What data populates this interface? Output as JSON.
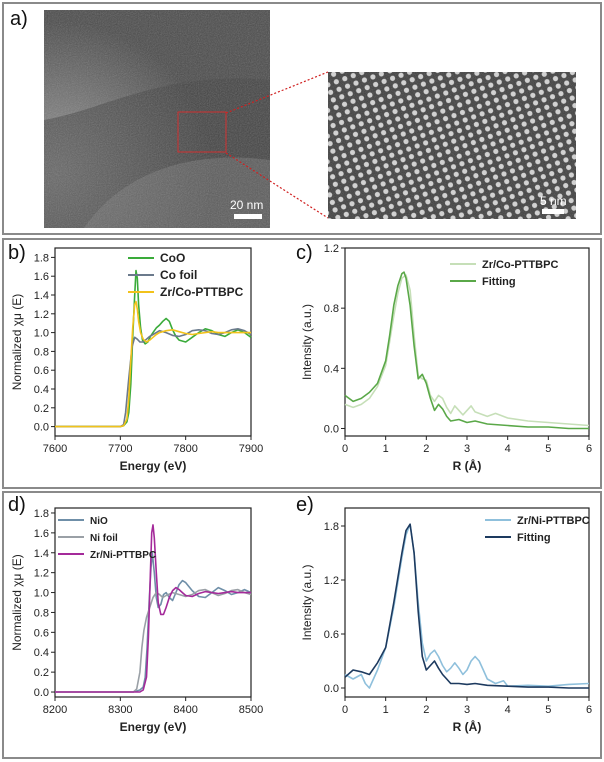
{
  "figure": {
    "panel_a": {
      "label": "a)",
      "left_image": {
        "scale_bar": "20 nm"
      },
      "right_image": {
        "scale_bar": "5 nm"
      }
    },
    "panel_b": {
      "label": "b)"
    },
    "panel_c": {
      "label": "c)"
    },
    "panel_d": {
      "label": "d)"
    },
    "panel_e": {
      "label": "e)"
    }
  },
  "colors": {
    "CoO": "#3aab3a",
    "Co foil": "#6b7a8c",
    "Zr/Co-PTTBPC": "#f2c21b",
    "Zr/Co-PTTBPC (c)": "#c6dfb8",
    "Fitting (c)": "#5aa848",
    "NiO": "#6f8fa8",
    "Ni foil": "#9aa0a6",
    "Zr/Ni-PTTBPC": "#a42a9a",
    "Zr/Ni-PTTBPC (e)": "#8fc0dc",
    "Fitting (e)": "#1d3a5f"
  },
  "chart_data": [
    {
      "id": "b",
      "type": "line",
      "xlabel": "Energy (eV)",
      "ylabel": "Normalized χμ (E)",
      "xlim": [
        7600,
        7900
      ],
      "ylim": [
        -0.1,
        1.9
      ],
      "xticks": [
        7600,
        7700,
        7800,
        7900
      ],
      "yticks": [
        0.0,
        0.2,
        0.4,
        0.6,
        0.8,
        1.0,
        1.2,
        1.4,
        1.6,
        1.8
      ],
      "legend_position": "top-right",
      "series": [
        {
          "name": "CoO",
          "x": [
            7600,
            7700,
            7705,
            7710,
            7713,
            7716,
            7719,
            7722,
            7724,
            7726,
            7728,
            7731,
            7734,
            7738,
            7742,
            7746,
            7750,
            7755,
            7760,
            7765,
            7770,
            7775,
            7780,
            7785,
            7790,
            7800,
            7810,
            7820,
            7830,
            7840,
            7850,
            7860,
            7870,
            7880,
            7890,
            7900
          ],
          "y": [
            0.0,
            0.0,
            0.01,
            0.05,
            0.15,
            0.45,
            0.95,
            1.4,
            1.66,
            1.58,
            1.3,
            1.05,
            0.92,
            0.88,
            0.9,
            0.96,
            1.0,
            1.05,
            1.08,
            1.12,
            1.15,
            1.12,
            1.03,
            0.96,
            0.92,
            0.9,
            0.95,
            1.0,
            1.04,
            1.02,
            0.98,
            0.96,
            1.0,
            1.03,
            1.0,
            0.95
          ]
        },
        {
          "name": "Co foil",
          "x": [
            7600,
            7700,
            7705,
            7708,
            7710,
            7712,
            7715,
            7718,
            7722,
            7726,
            7730,
            7735,
            7740,
            7745,
            7750,
            7755,
            7760,
            7770,
            7780,
            7790,
            7800,
            7810,
            7820,
            7830,
            7840,
            7850,
            7860,
            7870,
            7880,
            7890,
            7900
          ],
          "y": [
            0.0,
            0.0,
            0.02,
            0.15,
            0.3,
            0.45,
            0.65,
            0.85,
            0.95,
            0.93,
            0.9,
            0.9,
            0.93,
            0.96,
            0.98,
            1.0,
            1.02,
            1.0,
            0.97,
            0.96,
            0.98,
            1.02,
            1.03,
            1.02,
            0.99,
            0.98,
            1.0,
            1.03,
            1.04,
            1.02,
            0.98
          ]
        },
        {
          "name": "Zr/Co-PTTBPC",
          "x": [
            7600,
            7700,
            7705,
            7710,
            7713,
            7716,
            7719,
            7722,
            7724,
            7726,
            7728,
            7731,
            7735,
            7740,
            7745,
            7750,
            7755,
            7760,
            7770,
            7780,
            7790,
            7800,
            7810,
            7820,
            7830,
            7840,
            7850,
            7860,
            7870,
            7880,
            7890,
            7900
          ],
          "y": [
            0.0,
            0.0,
            0.01,
            0.08,
            0.3,
            0.7,
            1.05,
            1.3,
            1.33,
            1.25,
            1.12,
            1.0,
            0.93,
            0.9,
            0.92,
            0.95,
            0.98,
            1.0,
            1.02,
            1.03,
            1.01,
            0.99,
            0.98,
            0.99,
            1.0,
            1.01,
            1.0,
            1.0,
            1.0,
            1.0,
            1.0,
            1.0
          ]
        }
      ]
    },
    {
      "id": "c",
      "type": "line",
      "xlabel": "R (Å)",
      "ylabel": "Intensity (a.u.)",
      "xlim": [
        0,
        6
      ],
      "ylim": [
        -0.05,
        1.2
      ],
      "xticks": [
        0,
        1,
        2,
        3,
        4,
        5,
        6
      ],
      "yticks": [
        0.0,
        0.4,
        0.8,
        1.2
      ],
      "legend_position": "top-right",
      "series": [
        {
          "name": "Zr/Co-PTTBPC",
          "x": [
            0,
            0.2,
            0.4,
            0.6,
            0.8,
            1.0,
            1.1,
            1.2,
            1.3,
            1.4,
            1.5,
            1.6,
            1.7,
            1.8,
            1.9,
            2.0,
            2.1,
            2.2,
            2.3,
            2.4,
            2.5,
            2.6,
            2.7,
            2.8,
            2.9,
            3.0,
            3.1,
            3.2,
            3.3,
            3.5,
            3.7,
            4.0,
            4.5,
            5.0,
            5.5,
            6.0
          ],
          "y": [
            0.16,
            0.14,
            0.16,
            0.2,
            0.28,
            0.42,
            0.58,
            0.75,
            0.9,
            1.0,
            1.02,
            0.92,
            0.62,
            0.35,
            0.33,
            0.32,
            0.22,
            0.18,
            0.22,
            0.2,
            0.14,
            0.1,
            0.15,
            0.12,
            0.09,
            0.12,
            0.15,
            0.11,
            0.1,
            0.08,
            0.1,
            0.07,
            0.05,
            0.04,
            0.03,
            0.02
          ]
        },
        {
          "name": "Fitting",
          "x": [
            0,
            0.2,
            0.4,
            0.6,
            0.8,
            1.0,
            1.1,
            1.2,
            1.3,
            1.4,
            1.45,
            1.5,
            1.6,
            1.7,
            1.8,
            1.9,
            2.0,
            2.1,
            2.2,
            2.3,
            2.4,
            2.5,
            2.6,
            2.8,
            3.0,
            3.2,
            3.5,
            4.0,
            4.5,
            5.0,
            5.5,
            6.0
          ],
          "y": [
            0.22,
            0.18,
            0.2,
            0.24,
            0.3,
            0.45,
            0.62,
            0.82,
            0.95,
            1.03,
            1.04,
            1.0,
            0.82,
            0.55,
            0.33,
            0.36,
            0.3,
            0.2,
            0.12,
            0.16,
            0.13,
            0.08,
            0.05,
            0.06,
            0.04,
            0.05,
            0.03,
            0.02,
            0.01,
            0.01,
            0.0,
            0.0
          ]
        }
      ]
    },
    {
      "id": "d",
      "type": "line",
      "xlabel": "Energy (eV)",
      "ylabel": "Normalized χμ (E)",
      "xlim": [
        8200,
        8500
      ],
      "ylim": [
        -0.05,
        1.85
      ],
      "xticks": [
        8200,
        8300,
        8400,
        8500
      ],
      "yticks": [
        0.0,
        0.2,
        0.4,
        0.6,
        0.8,
        1.0,
        1.2,
        1.4,
        1.6,
        1.8
      ],
      "legend_position": "top-left",
      "series": [
        {
          "name": "NiO",
          "x": [
            8200,
            8320,
            8330,
            8335,
            8338,
            8341,
            8344,
            8347,
            8349,
            8352,
            8355,
            8358,
            8362,
            8366,
            8370,
            8375,
            8380,
            8385,
            8390,
            8395,
            8400,
            8410,
            8420,
            8430,
            8440,
            8450,
            8460,
            8470,
            8480,
            8490,
            8500
          ],
          "y": [
            0.0,
            0.0,
            0.02,
            0.05,
            0.15,
            0.45,
            0.9,
            1.25,
            1.4,
            1.2,
            0.95,
            0.85,
            0.88,
            0.98,
            1.0,
            0.95,
            0.92,
            1.0,
            1.08,
            1.12,
            1.1,
            1.02,
            0.96,
            0.95,
            1.0,
            1.05,
            1.02,
            0.98,
            1.0,
            1.03,
            1.0
          ]
        },
        {
          "name": "Ni foil",
          "x": [
            8200,
            8320,
            8325,
            8330,
            8333,
            8336,
            8340,
            8345,
            8350,
            8355,
            8360,
            8365,
            8370,
            8380,
            8390,
            8400,
            8410,
            8420,
            8430,
            8440,
            8450,
            8460,
            8470,
            8480,
            8490,
            8500
          ],
          "y": [
            0.0,
            0.0,
            0.03,
            0.2,
            0.45,
            0.62,
            0.75,
            0.85,
            0.95,
            1.0,
            0.98,
            0.95,
            0.97,
            1.0,
            0.98,
            0.96,
            0.98,
            1.02,
            1.03,
            1.0,
            0.97,
            0.99,
            1.02,
            1.03,
            1.0,
            0.98
          ]
        },
        {
          "name": "Zr/Ni-PTTBPC",
          "x": [
            8200,
            8330,
            8335,
            8340,
            8343,
            8346,
            8348,
            8350,
            8352,
            8355,
            8358,
            8362,
            8366,
            8370,
            8375,
            8380,
            8385,
            8390,
            8395,
            8400,
            8410,
            8420,
            8430,
            8440,
            8450,
            8460,
            8470,
            8480,
            8490,
            8500
          ],
          "y": [
            0.0,
            0.0,
            0.02,
            0.15,
            0.55,
            1.2,
            1.6,
            1.68,
            1.55,
            1.2,
            0.9,
            0.78,
            0.78,
            0.85,
            0.95,
            1.02,
            1.05,
            1.03,
            1.0,
            0.97,
            0.96,
            0.99,
            1.01,
            1.0,
            0.99,
            1.0,
            1.01,
            1.0,
            1.0,
            1.0
          ]
        }
      ]
    },
    {
      "id": "e",
      "type": "line",
      "xlabel": "R (Å)",
      "ylabel": "Intensity (a.u.)",
      "xlim": [
        0,
        6
      ],
      "ylim": [
        -0.1,
        2.0
      ],
      "xticks": [
        0,
        1,
        2,
        3,
        4,
        5,
        6
      ],
      "yticks": [
        0.0,
        0.6,
        1.2,
        1.8
      ],
      "legend_position": "top-right",
      "series": [
        {
          "name": "Zr/Ni-PTTBPC",
          "x": [
            0,
            0.2,
            0.4,
            0.5,
            0.6,
            0.8,
            1.0,
            1.2,
            1.4,
            1.5,
            1.6,
            1.7,
            1.8,
            1.9,
            2.0,
            2.1,
            2.2,
            2.3,
            2.4,
            2.5,
            2.6,
            2.7,
            2.8,
            2.9,
            3.0,
            3.1,
            3.2,
            3.3,
            3.4,
            3.5,
            3.7,
            3.9,
            4.0,
            4.5,
            5.0,
            5.5,
            6.0
          ],
          "y": [
            0.15,
            0.1,
            0.15,
            0.05,
            0.0,
            0.2,
            0.45,
            0.9,
            1.45,
            1.7,
            1.82,
            1.5,
            0.95,
            0.5,
            0.3,
            0.38,
            0.42,
            0.35,
            0.25,
            0.18,
            0.22,
            0.28,
            0.22,
            0.15,
            0.2,
            0.3,
            0.35,
            0.3,
            0.2,
            0.1,
            0.05,
            0.08,
            0.02,
            0.03,
            0.02,
            0.04,
            0.05
          ]
        },
        {
          "name": "Fitting",
          "x": [
            0,
            0.2,
            0.4,
            0.6,
            0.8,
            1.0,
            1.2,
            1.4,
            1.5,
            1.6,
            1.7,
            1.8,
            1.9,
            2.0,
            2.1,
            2.2,
            2.3,
            2.4,
            2.5,
            2.6,
            2.8,
            3.0,
            3.2,
            3.5,
            4.0,
            4.5,
            5.0,
            5.5,
            6.0
          ],
          "y": [
            0.12,
            0.2,
            0.18,
            0.15,
            0.28,
            0.45,
            0.95,
            1.5,
            1.75,
            1.82,
            1.5,
            0.85,
            0.35,
            0.2,
            0.25,
            0.3,
            0.22,
            0.15,
            0.1,
            0.05,
            0.05,
            0.04,
            0.05,
            0.03,
            0.02,
            0.01,
            0.01,
            0.0,
            0.0
          ]
        }
      ]
    }
  ]
}
